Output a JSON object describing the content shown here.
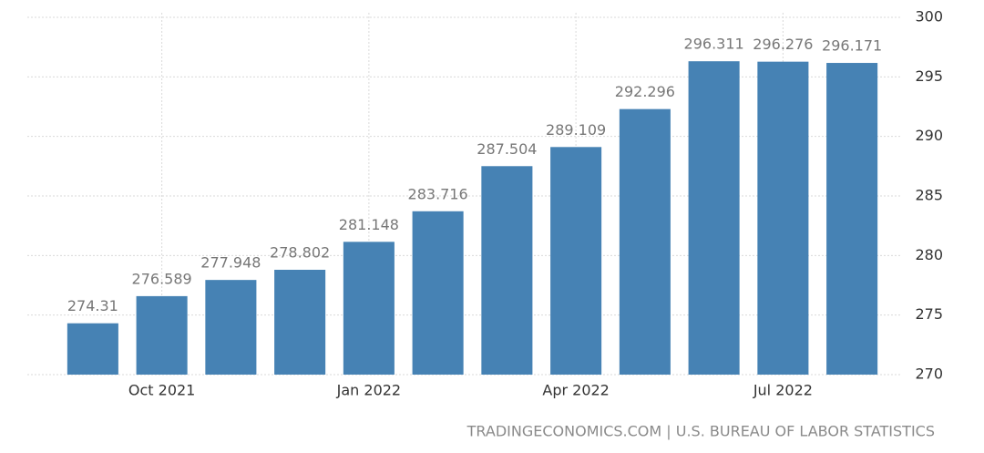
{
  "chart_data": {
    "type": "bar",
    "categories": [
      null,
      "Oct 2021",
      null,
      null,
      "Jan 2022",
      null,
      null,
      "Apr 2022",
      null,
      null,
      "Jul 2022",
      null
    ],
    "values": [
      274.31,
      276.589,
      277.948,
      278.802,
      281.148,
      283.716,
      287.504,
      289.109,
      292.296,
      296.311,
      296.276,
      296.171
    ],
    "color": "#4682b4",
    "ylim": [
      270,
      300
    ],
    "yticks": [
      270,
      275,
      280,
      285,
      290,
      295,
      300
    ],
    "grid": true,
    "source": "TRADINGECONOMICS.COM | U.S. BUREAU OF LABOR STATISTICS"
  }
}
